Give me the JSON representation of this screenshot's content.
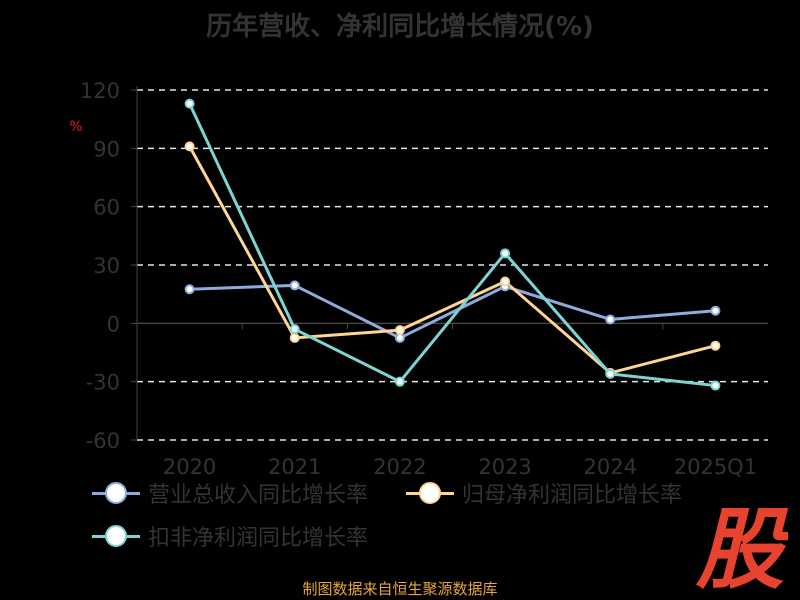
{
  "title": "历年营收、净利同比增长情况(%)",
  "chart_data": {
    "type": "line",
    "ylabel": "%",
    "ylim": [
      -60,
      120
    ],
    "yticks": [
      120,
      90,
      60,
      30,
      0,
      -30,
      -60
    ],
    "categories": [
      "2020",
      "2021",
      "2022",
      "2023",
      "2024",
      "2025Q1"
    ],
    "grid": true,
    "legend_position": "bottom",
    "series": [
      {
        "name": "营业总收入同比增长率",
        "color": "#8faadc",
        "values": [
          17.5,
          19.5,
          -7.5,
          19.0,
          2.0,
          6.5
        ]
      },
      {
        "name": "归母净利润同比增长率",
        "color": "#ffd591",
        "values": [
          91.0,
          -7.5,
          -3.5,
          21.5,
          -25.5,
          -11.5
        ]
      },
      {
        "name": "扣非净利润同比增长率",
        "color": "#7ed3d3",
        "values": [
          113.0,
          -3.0,
          -30.0,
          36.0,
          -26.0,
          -32.0
        ]
      }
    ]
  },
  "footer": "制图数据来自恒生聚源数据库",
  "watermark": {
    "text": "股",
    "color": "#e8432f"
  }
}
